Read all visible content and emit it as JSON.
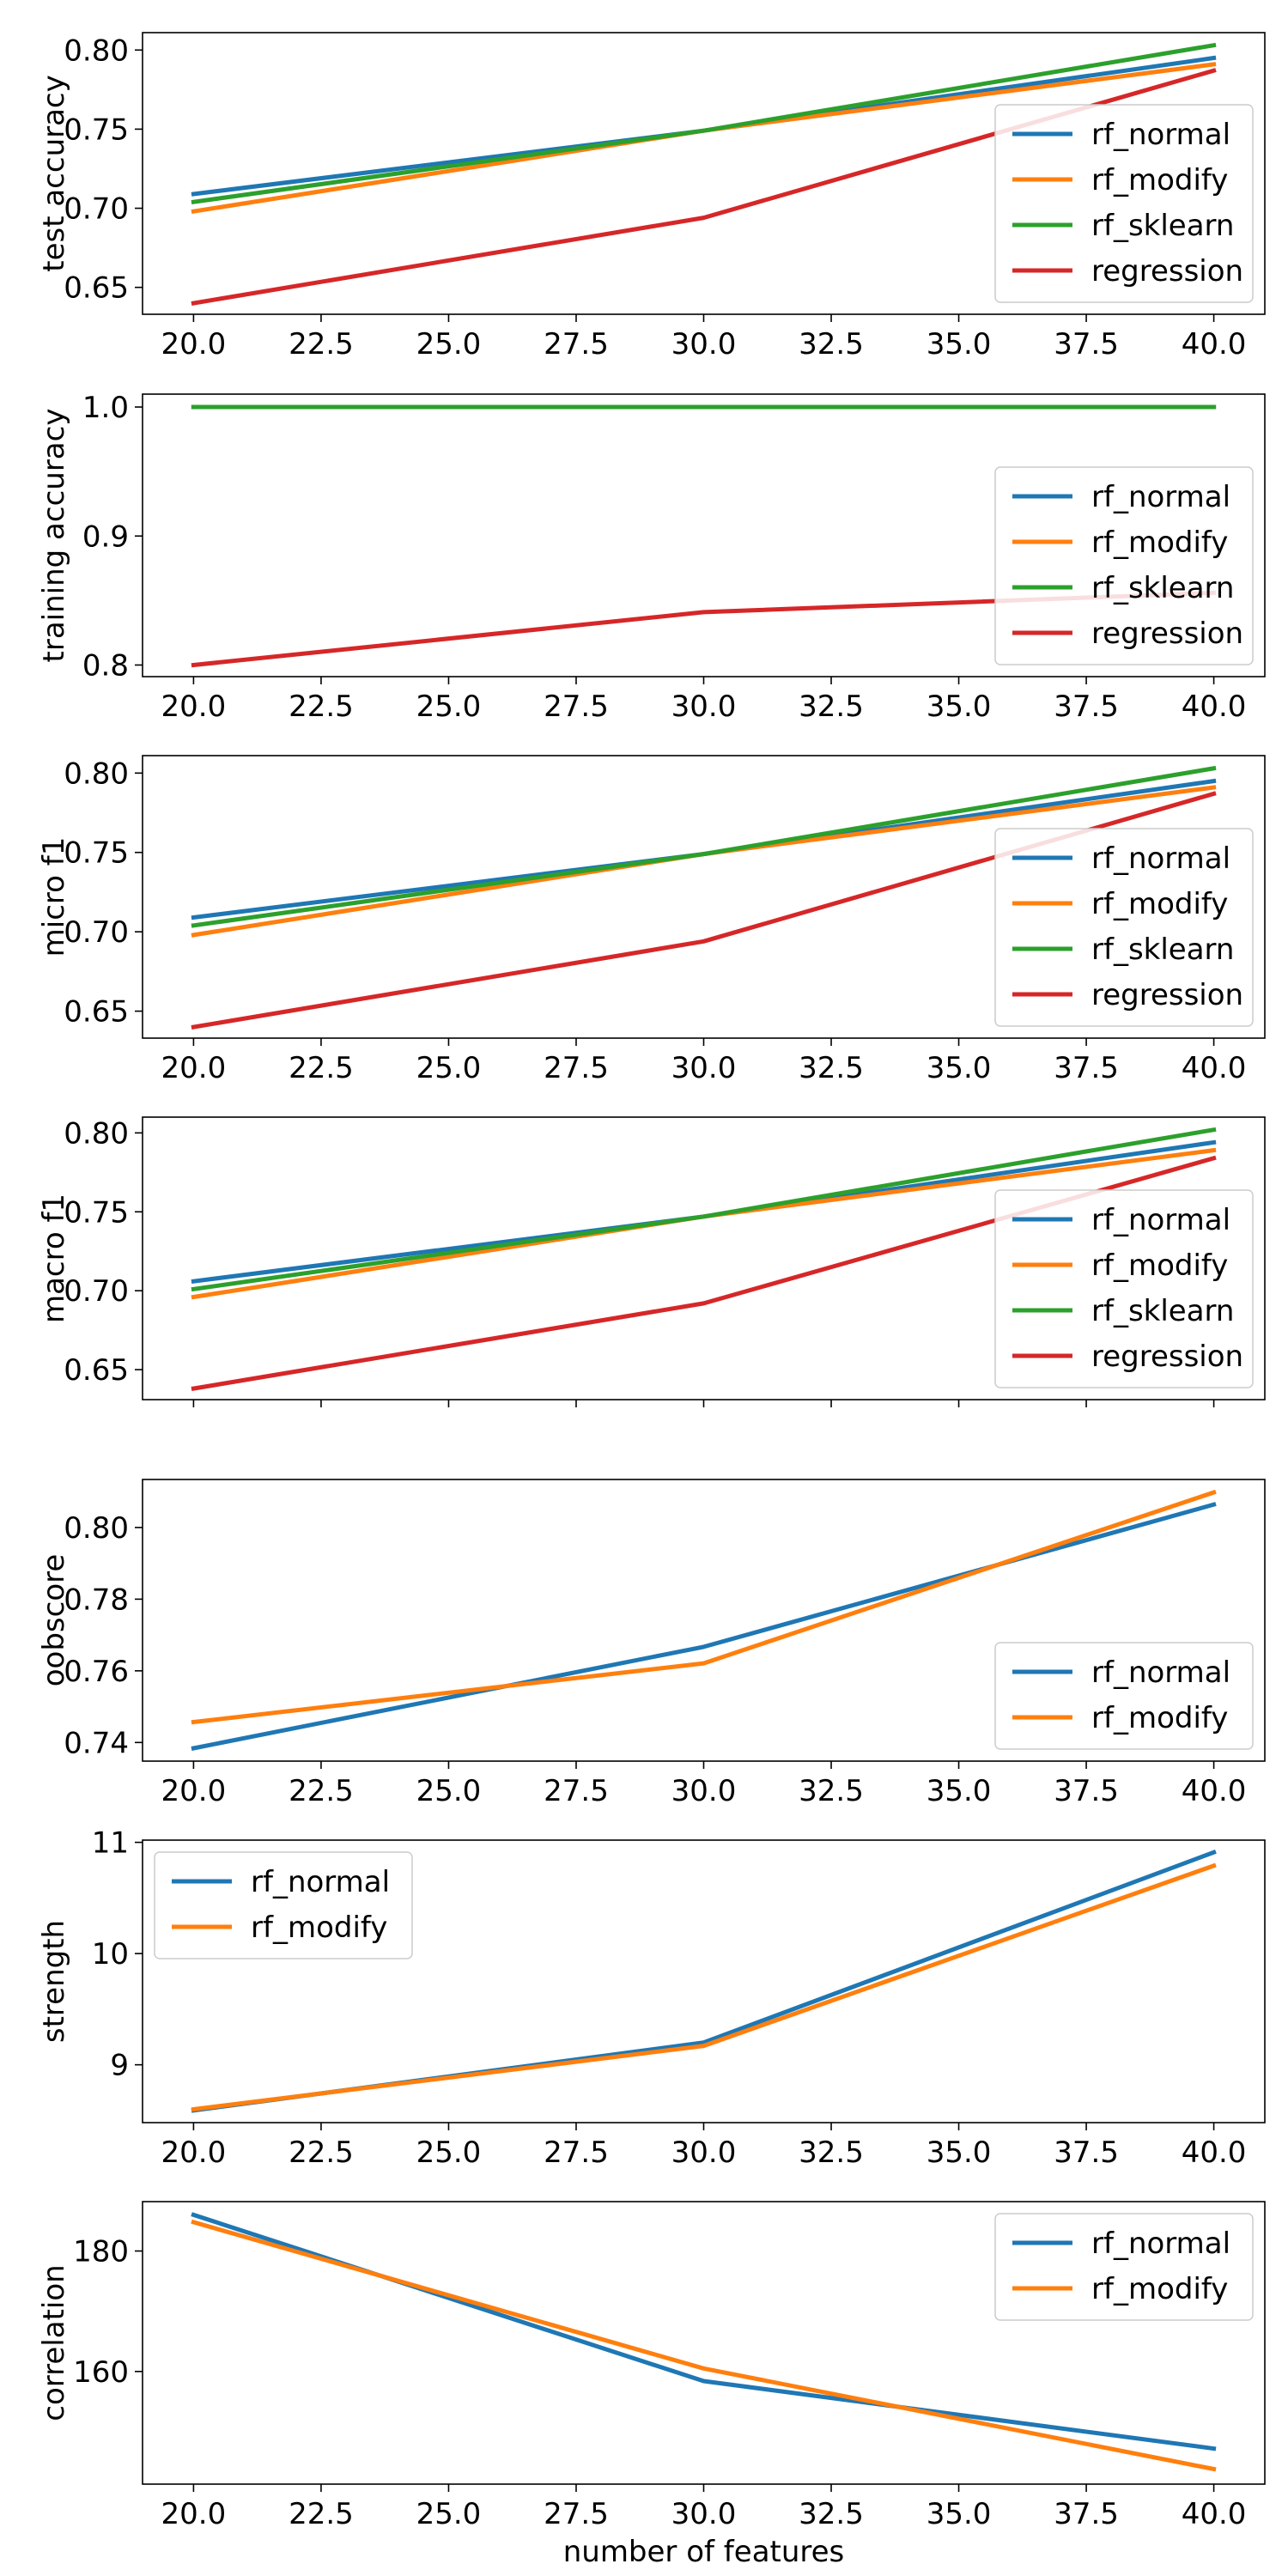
{
  "figure": {
    "colors": {
      "rf_normal": "#1f77b4",
      "rf_modify": "#ff7f0e",
      "rf_sklearn": "#2ca02c",
      "regression": "#d62728"
    }
  },
  "chart_data": [
    {
      "type": "line",
      "xlabel": "",
      "ylabel": "test accuracy",
      "x": [
        20,
        30,
        40
      ],
      "xticks": [
        "20.0",
        "22.5",
        "25.0",
        "27.5",
        "30.0",
        "32.5",
        "35.0",
        "37.5",
        "40.0"
      ],
      "yticks": [
        "0.65",
        "0.70",
        "0.75",
        "0.80"
      ],
      "ytick_values": [
        0.65,
        0.7,
        0.75,
        0.8
      ],
      "xlim": [
        19.0,
        41.0
      ],
      "ylim": [
        0.633,
        0.811
      ],
      "legend": "lower-right",
      "series": [
        {
          "name": "rf_normal",
          "values": [
            0.709,
            0.749,
            0.795
          ]
        },
        {
          "name": "rf_modify",
          "values": [
            0.698,
            0.749,
            0.791
          ]
        },
        {
          "name": "rf_sklearn",
          "values": [
            0.704,
            0.749,
            0.803
          ]
        },
        {
          "name": "regression",
          "values": [
            0.64,
            0.694,
            0.787
          ]
        }
      ]
    },
    {
      "type": "line",
      "xlabel": "",
      "ylabel": "training accuracy",
      "x": [
        20,
        30,
        40
      ],
      "xticks": [
        "20.0",
        "22.5",
        "25.0",
        "27.5",
        "30.0",
        "32.5",
        "35.0",
        "37.5",
        "40.0"
      ],
      "yticks": [
        "0.8",
        "0.9",
        "1.0"
      ],
      "ytick_values": [
        0.8,
        0.9,
        1.0
      ],
      "xlim": [
        19.0,
        41.0
      ],
      "ylim": [
        0.791,
        1.01
      ],
      "legend": "lower-right",
      "series": [
        {
          "name": "rf_normal",
          "values": [
            1.0,
            1.0,
            1.0
          ]
        },
        {
          "name": "rf_modify",
          "values": [
            1.0,
            1.0,
            1.0
          ]
        },
        {
          "name": "rf_sklearn",
          "values": [
            1.0,
            1.0,
            1.0
          ]
        },
        {
          "name": "regression",
          "values": [
            0.8,
            0.841,
            0.856
          ]
        }
      ]
    },
    {
      "type": "line",
      "xlabel": "",
      "ylabel": "micro f1",
      "x": [
        20,
        30,
        40
      ],
      "xticks": [
        "20.0",
        "22.5",
        "25.0",
        "27.5",
        "30.0",
        "32.5",
        "35.0",
        "37.5",
        "40.0"
      ],
      "yticks": [
        "0.65",
        "0.70",
        "0.75",
        "0.80"
      ],
      "ytick_values": [
        0.65,
        0.7,
        0.75,
        0.8
      ],
      "xlim": [
        19.0,
        41.0
      ],
      "ylim": [
        0.633,
        0.811
      ],
      "legend": "lower-right",
      "series": [
        {
          "name": "rf_normal",
          "values": [
            0.709,
            0.749,
            0.795
          ]
        },
        {
          "name": "rf_modify",
          "values": [
            0.698,
            0.749,
            0.791
          ]
        },
        {
          "name": "rf_sklearn",
          "values": [
            0.704,
            0.749,
            0.803
          ]
        },
        {
          "name": "regression",
          "values": [
            0.64,
            0.694,
            0.787
          ]
        }
      ]
    },
    {
      "type": "line",
      "xlabel": "",
      "ylabel": "macro f1",
      "x": [
        20,
        30,
        40
      ],
      "xticks": [
        "20.0",
        "22.5",
        "25.0",
        "27.5",
        "30.0",
        "32.5",
        "35.0",
        "37.5",
        "40.0"
      ],
      "yticks": [
        "0.65",
        "0.70",
        "0.75",
        "0.80"
      ],
      "ytick_values": [
        0.65,
        0.7,
        0.75,
        0.8
      ],
      "xlim": [
        19.0,
        41.0
      ],
      "ylim": [
        0.631,
        0.81
      ],
      "legend": "lower-right",
      "series": [
        {
          "name": "rf_normal",
          "values": [
            0.706,
            0.747,
            0.794
          ]
        },
        {
          "name": "rf_modify",
          "values": [
            0.696,
            0.747,
            0.789
          ]
        },
        {
          "name": "rf_sklearn",
          "values": [
            0.701,
            0.747,
            0.802
          ]
        },
        {
          "name": "regression",
          "values": [
            0.638,
            0.692,
            0.784
          ]
        }
      ]
    },
    {
      "type": "line",
      "xlabel": "",
      "ylabel": "oobscore",
      "x": [
        20,
        30,
        40
      ],
      "xticks": [
        "20.0",
        "22.5",
        "25.0",
        "27.5",
        "30.0",
        "32.5",
        "35.0",
        "37.5",
        "40.0"
      ],
      "yticks": [
        "0.74",
        "0.76",
        "0.78",
        "0.80"
      ],
      "ytick_values": [
        0.74,
        0.76,
        0.78,
        0.8
      ],
      "xlim": [
        19.0,
        41.0
      ],
      "ylim": [
        0.7348,
        0.8134
      ],
      "legend": "lower-right",
      "series": [
        {
          "name": "rf_normal",
          "values": [
            0.7384,
            0.7667,
            0.8064
          ]
        },
        {
          "name": "rf_modify",
          "values": [
            0.7457,
            0.7621,
            0.8098
          ]
        }
      ]
    },
    {
      "type": "line",
      "xlabel": "",
      "ylabel": "strength",
      "x": [
        20,
        30,
        40
      ],
      "xticks": [
        "20.0",
        "22.5",
        "25.0",
        "27.5",
        "30.0",
        "32.5",
        "35.0",
        "37.5",
        "40.0"
      ],
      "yticks": [
        "9",
        "10",
        "11"
      ],
      "ytick_values": [
        9,
        10,
        11
      ],
      "xlim": [
        19.0,
        41.0
      ],
      "ylim": [
        8.48,
        11.02
      ],
      "legend": "upper-left",
      "series": [
        {
          "name": "rf_normal",
          "values": [
            8.59,
            9.2,
            10.91
          ]
        },
        {
          "name": "rf_modify",
          "values": [
            8.6,
            9.17,
            10.79
          ]
        }
      ]
    },
    {
      "type": "line",
      "xlabel": "number of features",
      "ylabel": "correlation",
      "x": [
        20,
        30,
        40
      ],
      "xticks": [
        "20.0",
        "22.5",
        "25.0",
        "27.5",
        "30.0",
        "32.5",
        "35.0",
        "37.5",
        "40.0"
      ],
      "yticks": [
        "160",
        "180"
      ],
      "ytick_values": [
        160,
        180
      ],
      "xlim": [
        19.0,
        41.0
      ],
      "ylim": [
        141.3,
        188.2
      ],
      "legend": "upper-right",
      "series": [
        {
          "name": "rf_normal",
          "values": [
            186.0,
            158.4,
            147.2
          ]
        },
        {
          "name": "rf_modify",
          "values": [
            184.8,
            160.5,
            143.8
          ]
        }
      ]
    }
  ]
}
